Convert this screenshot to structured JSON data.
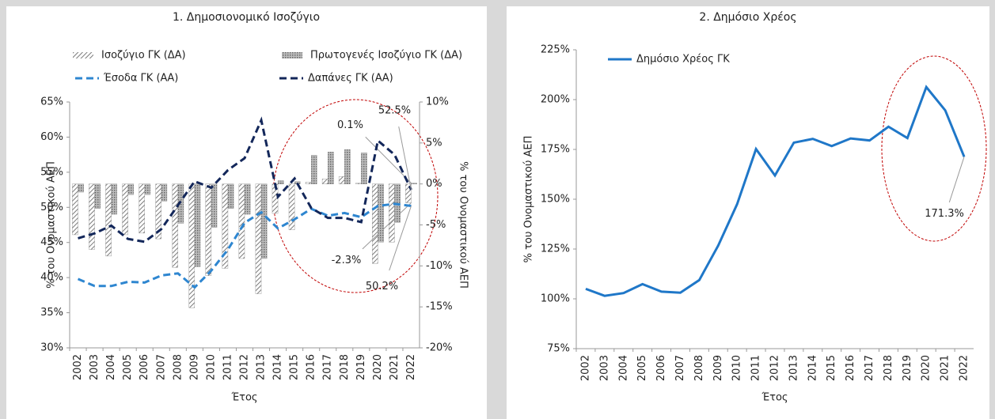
{
  "chart_data": [
    {
      "type": "combo",
      "title": "1. Δημοσιονομικό Ισοζύγιο",
      "x_label": "Έτος",
      "y_label": "% του Ονομαστικού ΑΕΠ",
      "y2_label": "% του Ονομαστικού ΑΕΠ",
      "categories": [
        "2002",
        "2003",
        "2004",
        "2005",
        "2006",
        "2007",
        "2008",
        "2009",
        "2010",
        "2011",
        "2012",
        "2013",
        "2014",
        "2015",
        "2016",
        "2017",
        "2018",
        "2019",
        "2020",
        "2021",
        "2022"
      ],
      "series": [
        {
          "name": "Ισοζύγιο ΓΚ (ΔΑ)",
          "type": "bar",
          "axis": "y2",
          "color": "#8c8c8c",
          "pattern": "diagonal",
          "values": [
            -6.2,
            -8.0,
            -8.8,
            -6.2,
            -6.0,
            -6.7,
            -10.2,
            -15.1,
            -11.2,
            -10.3,
            -9.1,
            -13.4,
            -3.6,
            -5.6,
            0.2,
            0.6,
            0.9,
            0.1,
            -9.7,
            -7.1,
            -2.3
          ],
          "value_labels": [
            null,
            null,
            null,
            null,
            null,
            null,
            null,
            null,
            null,
            null,
            null,
            null,
            null,
            null,
            null,
            null,
            null,
            null,
            null,
            null,
            "-2.3%"
          ]
        },
        {
          "name": "Πρωτογενές Ισοζύγιο ΓΚ (ΔΑ)",
          "type": "bar",
          "axis": "y2",
          "color": "#8c8c8c",
          "pattern": "dense",
          "values": [
            -1.0,
            -3.0,
            -3.7,
            -1.3,
            -1.3,
            -2.1,
            -4.8,
            -10.1,
            -5.3,
            -3.0,
            -3.7,
            -9.1,
            0.4,
            0.3,
            3.5,
            3.9,
            4.2,
            3.8,
            -7.1,
            -4.7,
            0.1
          ],
          "value_labels": [
            null,
            null,
            null,
            null,
            null,
            null,
            null,
            null,
            null,
            null,
            null,
            null,
            null,
            null,
            null,
            null,
            null,
            null,
            null,
            null,
            "0.1%"
          ]
        },
        {
          "name": "Έσοδα ΓΚ (ΑΑ)",
          "type": "line",
          "color": "#2e86d0",
          "dash": "dashed",
          "values": [
            39.8,
            38.8,
            38.8,
            39.4,
            39.3,
            40.3,
            40.6,
            38.6,
            41.0,
            44.0,
            47.8,
            49.3,
            47.0,
            48.3,
            49.8,
            48.8,
            49.2,
            48.6,
            50.2,
            50.5,
            50.2
          ],
          "value_labels": [
            null,
            null,
            null,
            null,
            null,
            null,
            null,
            null,
            null,
            null,
            null,
            null,
            null,
            null,
            null,
            null,
            null,
            null,
            null,
            null,
            "50.2%"
          ]
        },
        {
          "name": "Δαπάνες ΓΚ (ΑΑ)",
          "type": "line",
          "color": "#13275a",
          "dash": "dashed",
          "values": [
            45.6,
            46.3,
            47.4,
            45.5,
            45.1,
            46.9,
            50.3,
            53.7,
            52.8,
            55.3,
            57.0,
            62.4,
            51.5,
            54.1,
            49.9,
            48.5,
            48.5,
            47.9,
            59.5,
            57.5,
            52.5
          ],
          "value_labels": [
            null,
            null,
            null,
            null,
            null,
            null,
            null,
            null,
            null,
            null,
            null,
            null,
            null,
            null,
            null,
            null,
            null,
            null,
            null,
            null,
            "52.5%"
          ]
        }
      ],
      "ylim": [
        30,
        65
      ],
      "yticks": [
        {
          "value": 30,
          "label": "30%"
        },
        {
          "value": 35,
          "label": "35%"
        },
        {
          "value": 40,
          "label": "40%"
        },
        {
          "value": 45,
          "label": "45%"
        },
        {
          "value": 50,
          "label": "50%"
        },
        {
          "value": 55,
          "label": "55%"
        },
        {
          "value": 60,
          "label": "60%"
        },
        {
          "value": 65,
          "label": "65%"
        }
      ],
      "y2lim": [
        -20,
        10
      ],
      "y2ticks": [
        {
          "value": -20,
          "label": "-20%"
        },
        {
          "value": -15,
          "label": "-15%"
        },
        {
          "value": -10,
          "label": "-10%"
        },
        {
          "value": -5,
          "label": "-5%"
        },
        {
          "value": 0,
          "label": "0%"
        },
        {
          "value": 5,
          "label": "5%"
        },
        {
          "value": 10,
          "label": "10%"
        }
      ],
      "legend": "top",
      "grid": false
    },
    {
      "type": "line",
      "title": "2. Δημόσιο Χρέος",
      "x_label": "Έτος",
      "y_label": "% του Ονομαστικού ΑΕΠ",
      "categories": [
        "2002",
        "2003",
        "2004",
        "2005",
        "2006",
        "2007",
        "2008",
        "2009",
        "2010",
        "2011",
        "2012",
        "2013",
        "2014",
        "2015",
        "2016",
        "2017",
        "2018",
        "2019",
        "2020",
        "2021",
        "2022"
      ],
      "series": [
        {
          "name": "Δημόσιο Χρέος ΓΚ",
          "type": "line",
          "color": "#1f77c8",
          "dash": "solid",
          "values": [
            105.0,
            101.5,
            102.9,
            107.4,
            103.6,
            103.1,
            109.4,
            126.7,
            147.5,
            175.2,
            161.9,
            178.4,
            180.3,
            176.7,
            180.5,
            179.5,
            186.4,
            180.7,
            206.3,
            194.6,
            171.3
          ],
          "value_labels": [
            null,
            null,
            null,
            null,
            null,
            null,
            null,
            null,
            null,
            null,
            null,
            null,
            null,
            null,
            null,
            null,
            null,
            null,
            null,
            null,
            "171.3%"
          ]
        }
      ],
      "ylim": [
        75,
        225
      ],
      "yticks": [
        {
          "value": 75,
          "label": "75%"
        },
        {
          "value": 100,
          "label": "100%"
        },
        {
          "value": 125,
          "label": "125%"
        },
        {
          "value": 150,
          "label": "150%"
        },
        {
          "value": 175,
          "label": "175%"
        },
        {
          "value": 200,
          "label": "200%"
        },
        {
          "value": 225,
          "label": "225%"
        }
      ],
      "legend": "top-left",
      "grid": false
    }
  ]
}
